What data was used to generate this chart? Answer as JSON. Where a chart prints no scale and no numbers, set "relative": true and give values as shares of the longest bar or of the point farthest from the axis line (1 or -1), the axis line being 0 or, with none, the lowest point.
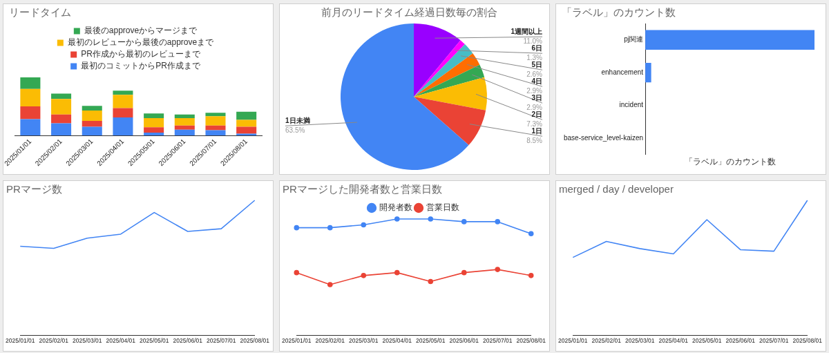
{
  "chart_data": [
    {
      "type": "bar",
      "title": "リードタイム",
      "stacked": true,
      "relative": true,
      "legend": "top",
      "categories": [
        "2025/01/01",
        "2025/02/01",
        "2025/03/01",
        "2025/04/01",
        "2025/05/01",
        "2025/06/01",
        "2025/07/01",
        "2025/08/01"
      ],
      "series": [
        {
          "name": "最初のコミットからPR作成まで",
          "color": "#4285f4",
          "values": [
            0.28,
            0.21,
            0.15,
            0.31,
            0.05,
            0.1,
            0.09,
            0.03
          ]
        },
        {
          "name": "PR作成から最初のレビューまで",
          "color": "#ea4335",
          "values": [
            0.22,
            0.15,
            0.1,
            0.16,
            0.09,
            0.07,
            0.08,
            0.12
          ]
        },
        {
          "name": "最初のレビューから最後のapproveまで",
          "color": "#fbbc04",
          "values": [
            0.3,
            0.27,
            0.18,
            0.23,
            0.16,
            0.13,
            0.16,
            0.12
          ]
        },
        {
          "name": "最後のapproveからマージまで",
          "color": "#34a853",
          "values": [
            0.2,
            0.09,
            0.08,
            0.07,
            0.08,
            0.06,
            0.06,
            0.14
          ]
        }
      ]
    },
    {
      "type": "pie",
      "title": "前月のリードタイム経過日数毎の割合",
      "categories": [
        "1週間以上",
        "6日",
        "5日",
        "4日",
        "3日",
        "2日",
        "1日",
        "1日未満"
      ],
      "values": [
        11.0,
        1.3,
        2.6,
        2.9,
        2.9,
        7.3,
        8.5,
        63.5
      ],
      "value_labels": [
        "11.0%",
        "1.3%",
        "2.6%",
        "2.9%",
        "2.9%",
        "7.3%",
        "8.5%",
        "63.5%"
      ],
      "colors": [
        "#9900ff",
        "#ff00ff",
        "#46bdc6",
        "#ff6d01",
        "#34a853",
        "#fbbc04",
        "#ea4335",
        "#4285f4"
      ]
    },
    {
      "type": "bar",
      "orientation": "horizontal",
      "title": "「ラベル」のカウント数",
      "xlabel": "「ラベル」のカウント数",
      "relative": true,
      "categories": [
        "pj関連",
        "enhancement",
        "incident",
        "base-service_level-kaizen"
      ],
      "values": [
        1,
        0.035,
        null,
        null
      ],
      "color": "#4285f4"
    },
    {
      "type": "line",
      "title": "PRマージ数",
      "relative": true,
      "categories": [
        "2025/01/01",
        "2025/02/01",
        "2025/03/01",
        "2025/04/01",
        "2025/05/01",
        "2025/06/01",
        "2025/07/01",
        "2025/08/01"
      ],
      "series": [
        {
          "color": "#4285f4",
          "values": [
            0.66,
            0.645,
            0.72,
            0.75,
            0.91,
            0.77,
            0.79,
            1
          ]
        }
      ]
    },
    {
      "type": "line",
      "title": "PRマージした開発者数と営業日数",
      "relative": true,
      "legend": "top",
      "marker": "circle",
      "categories": [
        "2025/01/01",
        "2025/02/01",
        "2025/03/01",
        "2025/04/01",
        "2025/05/01",
        "2025/06/01",
        "2025/07/01",
        "2025/08/01"
      ],
      "series": [
        {
          "name": "開発者数",
          "color": "#4285f4",
          "values": [
            0.925,
            0.925,
            0.95,
            1,
            1,
            0.977,
            0.977,
            0.874
          ]
        },
        {
          "name": "営業日数",
          "color": "#ea4335",
          "values": [
            0.54,
            0.437,
            0.515,
            0.54,
            0.464,
            0.54,
            0.567,
            0.515
          ]
        }
      ]
    },
    {
      "type": "line",
      "title": "merged / day / developer",
      "relative": true,
      "categories": [
        "2025/01/01",
        "2025/02/01",
        "2025/03/01",
        "2025/04/01",
        "2025/05/01",
        "2025/06/01",
        "2025/07/01",
        "2025/08/01"
      ],
      "series": [
        {
          "color": "#4285f4",
          "values": [
            0.578,
            0.696,
            0.643,
            0.604,
            0.857,
            0.635,
            0.624,
            1
          ]
        }
      ]
    }
  ]
}
